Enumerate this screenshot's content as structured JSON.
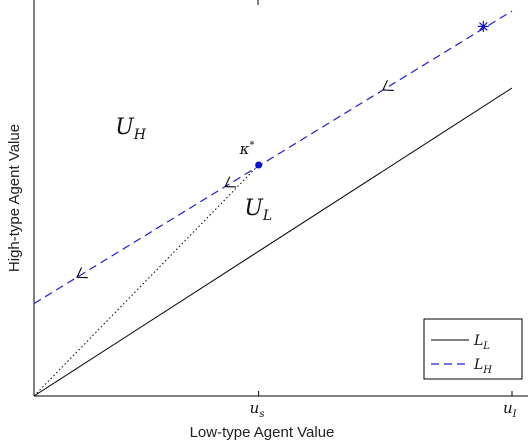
{
  "chart_data": {
    "type": "line",
    "xlabel": "Low-type Agent Value",
    "ylabel": "High-type Agent Value",
    "xlim": [
      0,
      1
    ],
    "ylim": [
      0,
      1
    ],
    "x_ticks": [
      {
        "value": 0.47,
        "label": "u",
        "sub": "s"
      },
      {
        "value": 1.0,
        "label": "u",
        "sub": "I"
      }
    ],
    "series": [
      {
        "name": "L",
        "name_sub": "L",
        "style": "solid",
        "color": "#000000",
        "x": [
          0,
          1.0
        ],
        "y": [
          0,
          0.8
        ]
      },
      {
        "name": "L",
        "name_sub": "H",
        "style": "dashed",
        "color": "#1f1fd6",
        "x": [
          0,
          1.0
        ],
        "y": [
          0.24,
          1.0
        ]
      }
    ],
    "guide_line": {
      "style": "dotted",
      "x": [
        0,
        0.47
      ],
      "y": [
        0,
        0.6
      ]
    },
    "points": [
      {
        "label": "κ",
        "sup": "*",
        "x": 0.47,
        "y": 0.6,
        "marker": "dot",
        "color": "#1010d0"
      },
      {
        "label": "",
        "x": 0.94,
        "y": 0.96,
        "marker": "star",
        "color": "#1010d0"
      }
    ],
    "arrow_positions": [
      0.09,
      0.4,
      0.73
    ],
    "region_labels": [
      {
        "label": "U",
        "sub": "H",
        "x": 0.17,
        "y": 0.68
      },
      {
        "label": "U",
        "sub": "L",
        "x": 0.44,
        "y": 0.47
      }
    ],
    "legend": {
      "position": "bottom-right",
      "entries": [
        "L_L",
        "L_H"
      ]
    }
  }
}
